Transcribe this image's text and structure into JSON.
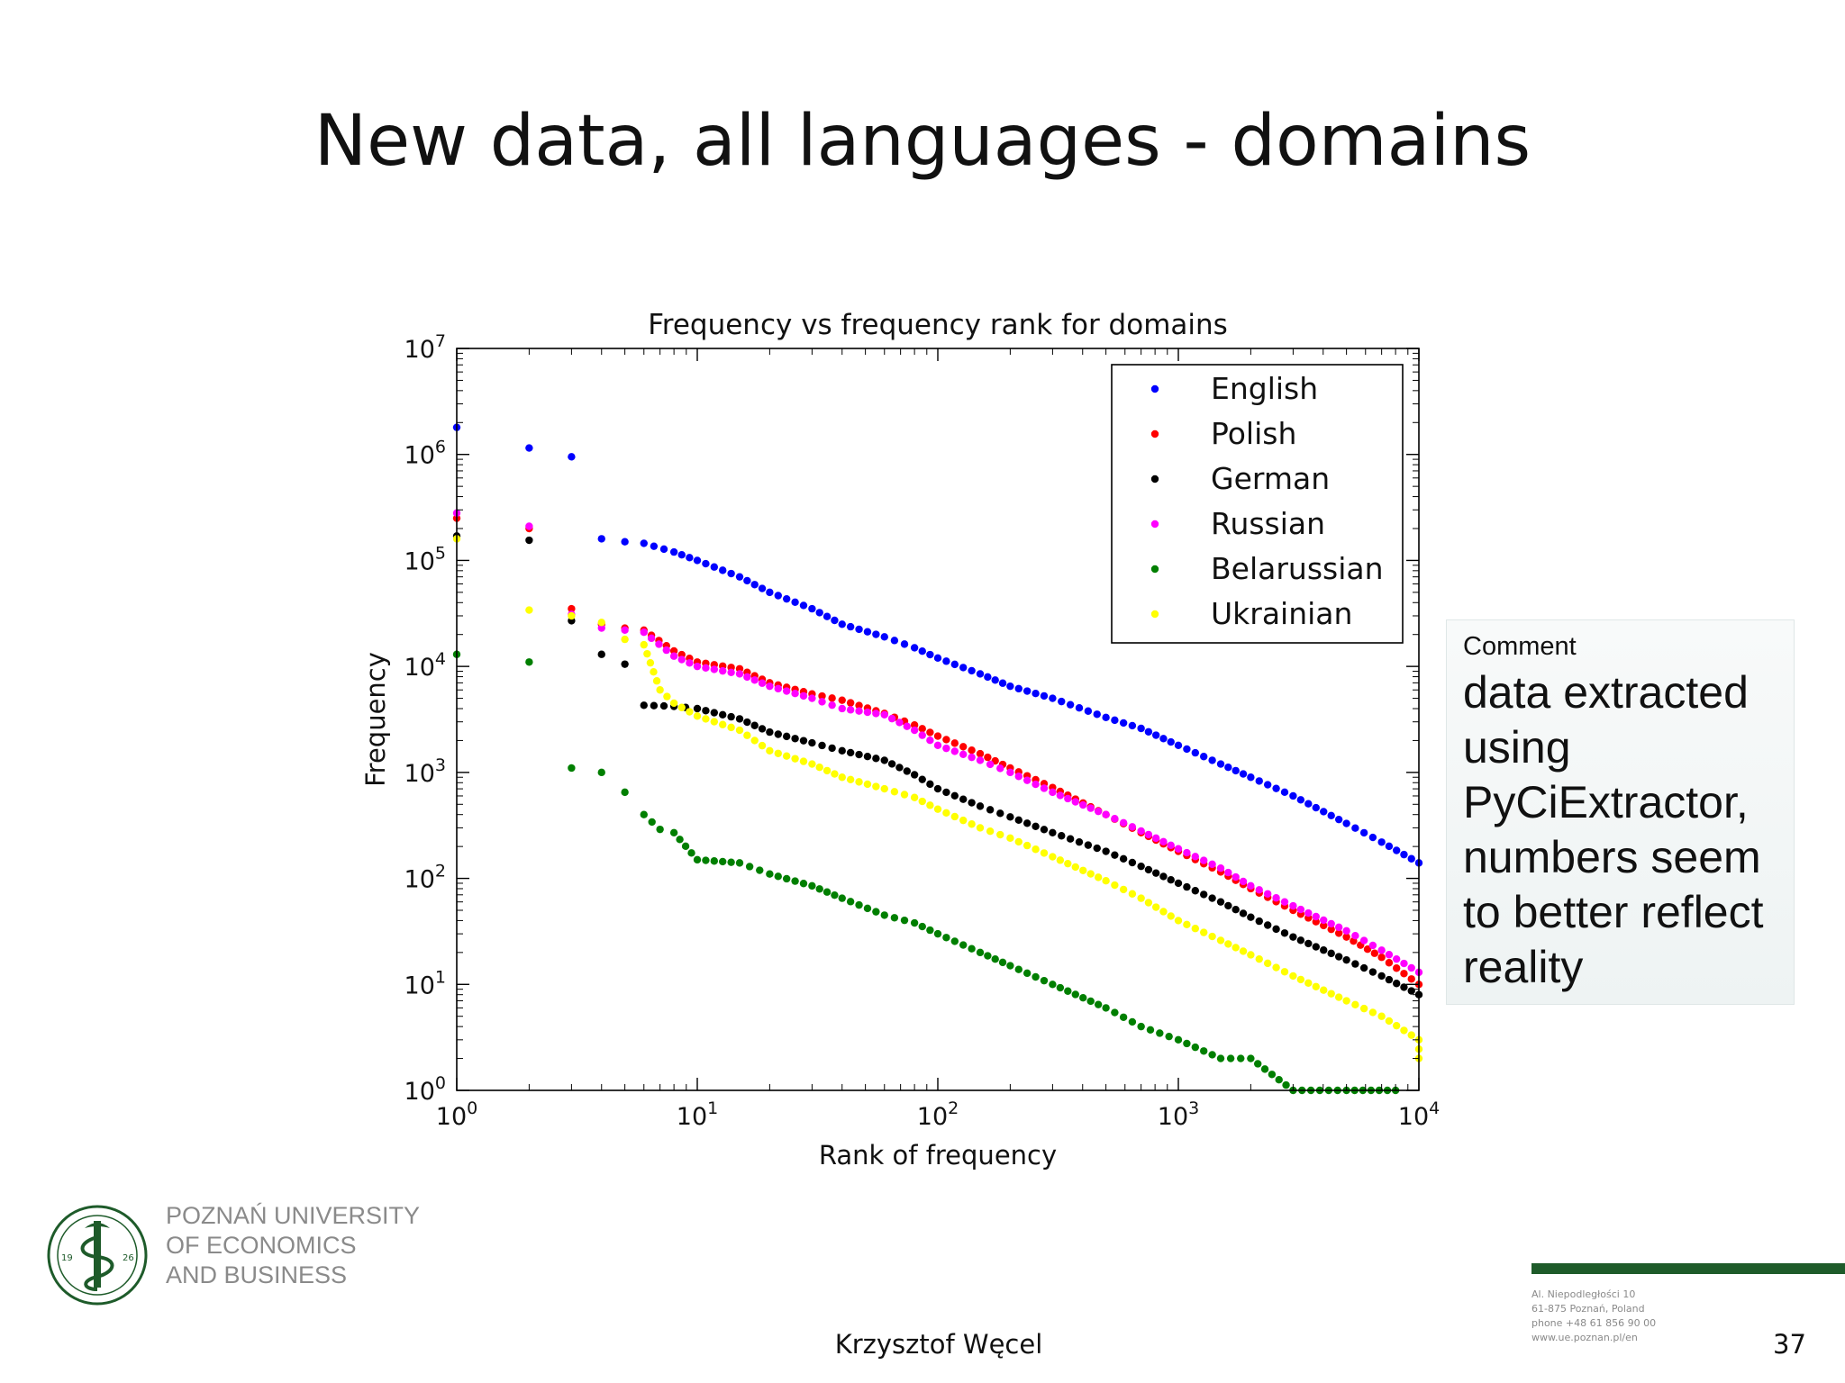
{
  "slide": {
    "title": "New data, all languages - domains",
    "author": "Krzysztof Węcel",
    "page_number": "37"
  },
  "comment": {
    "label": "Comment",
    "text": "data extracted using PyCiExtractor, numbers seem to better reflect reality"
  },
  "logo": {
    "line1": "POZNAŃ UNIVERSITY",
    "line2": "OF ECONOMICS",
    "line3": "AND BUSINESS",
    "year_left": "19",
    "year_right": "26"
  },
  "address": {
    "line1": "Al. Niepodległości 10",
    "line2": "61-875 Poznań, Poland",
    "line3": "phone +48 61 856 90 00",
    "line4": "www.ue.poznan.pl/en"
  },
  "colors": {
    "English": "#0000ff",
    "Polish": "#ff0000",
    "German": "#000000",
    "Russian": "#ff00ff",
    "Belarussian": "#007f00",
    "Ukrainian": "#ffff00",
    "brand_green": "#1e5b2a"
  },
  "chart_data": {
    "type": "scatter",
    "title": "Frequency vs frequency rank for domains",
    "xlabel": "Rank of frequency",
    "ylabel": "Frequency",
    "x_scale": "log",
    "y_scale": "log",
    "xlim": [
      1,
      10000
    ],
    "ylim": [
      1,
      10000000
    ],
    "x_ticks": [
      1,
      10,
      100,
      1000,
      10000
    ],
    "y_ticks": [
      1,
      10,
      100,
      1000,
      10000,
      100000,
      1000000,
      10000000
    ],
    "tick_base": "10",
    "x_tick_exponents": [
      "0",
      "1",
      "2",
      "3",
      "4"
    ],
    "y_tick_exponents": [
      "0",
      "1",
      "2",
      "3",
      "4",
      "5",
      "6",
      "7"
    ],
    "legend_position": "top-right",
    "series": [
      {
        "name": "English",
        "points": [
          [
            1,
            1800000
          ],
          [
            2,
            1150000
          ],
          [
            3,
            950000
          ],
          [
            4,
            160000
          ],
          [
            5,
            150000
          ],
          [
            6,
            145000
          ],
          [
            8,
            120000
          ],
          [
            10,
            100000
          ],
          [
            15,
            70000
          ],
          [
            20,
            50000
          ],
          [
            30,
            35000
          ],
          [
            40,
            25000
          ],
          [
            60,
            19000
          ],
          [
            80,
            15000
          ],
          [
            100,
            12000
          ],
          [
            150,
            8500
          ],
          [
            200,
            6500
          ],
          [
            300,
            5000
          ],
          [
            500,
            3300
          ],
          [
            700,
            2600
          ],
          [
            1000,
            1800
          ],
          [
            1500,
            1200
          ],
          [
            2000,
            900
          ],
          [
            3000,
            600
          ],
          [
            5000,
            330
          ],
          [
            7000,
            220
          ],
          [
            10000,
            140
          ]
        ]
      },
      {
        "name": "Polish",
        "points": [
          [
            1,
            250000
          ],
          [
            2,
            200000
          ],
          [
            3,
            35000
          ],
          [
            4,
            25000
          ],
          [
            5,
            23000
          ],
          [
            6,
            22000
          ],
          [
            8,
            14000
          ],
          [
            10,
            11000
          ],
          [
            15,
            9500
          ],
          [
            20,
            7000
          ],
          [
            30,
            5500
          ],
          [
            40,
            4800
          ],
          [
            60,
            3600
          ],
          [
            80,
            2800
          ],
          [
            100,
            2200
          ],
          [
            150,
            1500
          ],
          [
            200,
            1100
          ],
          [
            300,
            720
          ],
          [
            500,
            400
          ],
          [
            700,
            270
          ],
          [
            1000,
            180
          ],
          [
            1500,
            115
          ],
          [
            2000,
            80
          ],
          [
            3000,
            50
          ],
          [
            5000,
            28
          ],
          [
            7000,
            18
          ],
          [
            10000,
            10
          ]
        ]
      },
      {
        "name": "German",
        "points": [
          [
            1,
            170000
          ],
          [
            2,
            155000
          ],
          [
            3,
            27000
          ],
          [
            4,
            13000
          ],
          [
            5,
            10500
          ],
          [
            6,
            4300
          ],
          [
            8,
            4200
          ],
          [
            10,
            4000
          ],
          [
            15,
            3200
          ],
          [
            20,
            2400
          ],
          [
            30,
            1900
          ],
          [
            40,
            1600
          ],
          [
            60,
            1300
          ],
          [
            80,
            950
          ],
          [
            100,
            700
          ],
          [
            150,
            480
          ],
          [
            200,
            380
          ],
          [
            300,
            270
          ],
          [
            500,
            180
          ],
          [
            700,
            130
          ],
          [
            1000,
            90
          ],
          [
            1500,
            60
          ],
          [
            2000,
            43
          ],
          [
            3000,
            28
          ],
          [
            5000,
            17
          ],
          [
            7000,
            12
          ],
          [
            10000,
            8
          ]
        ]
      },
      {
        "name": "Russian",
        "points": [
          [
            1,
            280000
          ],
          [
            2,
            210000
          ],
          [
            3,
            31000
          ],
          [
            4,
            23000
          ],
          [
            5,
            22000
          ],
          [
            6,
            21000
          ],
          [
            8,
            12500
          ],
          [
            10,
            10000
          ],
          [
            15,
            8500
          ],
          [
            20,
            6500
          ],
          [
            30,
            5000
          ],
          [
            40,
            4000
          ],
          [
            60,
            3500
          ],
          [
            80,
            2500
          ],
          [
            100,
            1800
          ],
          [
            150,
            1300
          ],
          [
            200,
            1000
          ],
          [
            300,
            650
          ],
          [
            500,
            400
          ],
          [
            700,
            280
          ],
          [
            1000,
            190
          ],
          [
            1500,
            125
          ],
          [
            2000,
            85
          ],
          [
            3000,
            55
          ],
          [
            5000,
            32
          ],
          [
            7000,
            21
          ],
          [
            10000,
            13
          ]
        ]
      },
      {
        "name": "Belarussian",
        "points": [
          [
            1,
            13000
          ],
          [
            2,
            11000
          ],
          [
            3,
            1100
          ],
          [
            4,
            1000
          ],
          [
            5,
            650
          ],
          [
            6,
            400
          ],
          [
            7,
            290
          ],
          [
            8,
            270
          ],
          [
            10,
            150
          ],
          [
            15,
            140
          ],
          [
            20,
            110
          ],
          [
            30,
            85
          ],
          [
            40,
            65
          ],
          [
            60,
            45
          ],
          [
            80,
            38
          ],
          [
            100,
            30
          ],
          [
            150,
            20
          ],
          [
            200,
            15
          ],
          [
            300,
            10
          ],
          [
            500,
            6
          ],
          [
            700,
            4
          ],
          [
            1000,
            3
          ],
          [
            1500,
            2
          ],
          [
            2000,
            2
          ],
          [
            3000,
            1
          ],
          [
            5000,
            1
          ],
          [
            8000,
            1
          ]
        ]
      },
      {
        "name": "Ukrainian",
        "points": [
          [
            1,
            160000
          ],
          [
            2,
            34000
          ],
          [
            3,
            30000
          ],
          [
            4,
            26000
          ],
          [
            5,
            18000
          ],
          [
            6,
            16000
          ],
          [
            7,
            6000
          ],
          [
            8,
            4500
          ],
          [
            10,
            3400
          ],
          [
            15,
            2500
          ],
          [
            20,
            1600
          ],
          [
            30,
            1200
          ],
          [
            40,
            900
          ],
          [
            60,
            700
          ],
          [
            80,
            580
          ],
          [
            100,
            450
          ],
          [
            150,
            300
          ],
          [
            200,
            240
          ],
          [
            300,
            160
          ],
          [
            500,
            95
          ],
          [
            700,
            65
          ],
          [
            1000,
            40
          ],
          [
            1500,
            26
          ],
          [
            2000,
            19
          ],
          [
            3000,
            12
          ],
          [
            5000,
            7
          ],
          [
            7000,
            5
          ],
          [
            10000,
            3
          ],
          [
            10000,
            2
          ]
        ]
      }
    ]
  }
}
